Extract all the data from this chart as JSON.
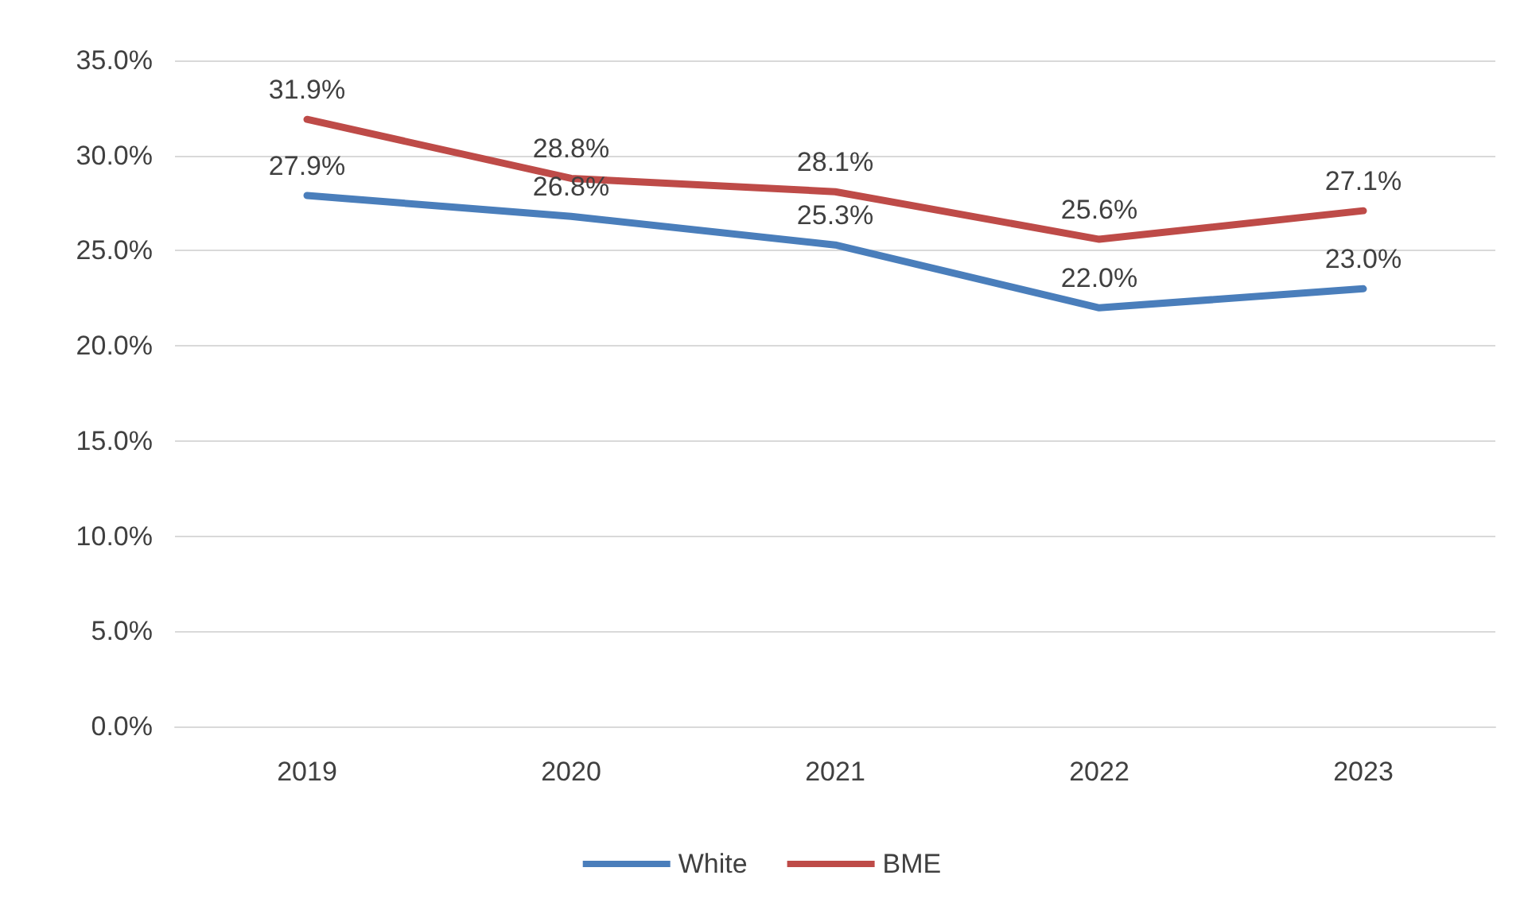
{
  "chart_data": {
    "type": "line",
    "categories": [
      "2019",
      "2020",
      "2021",
      "2022",
      "2023"
    ],
    "series": [
      {
        "name": "White",
        "color": "#4a7ebb",
        "values": [
          27.9,
          26.8,
          25.3,
          22.0,
          23.0
        ],
        "value_labels": [
          "27.9%",
          "26.8%",
          "25.3%",
          "22.0%",
          "23.0%"
        ]
      },
      {
        "name": "BME",
        "color": "#be4b48",
        "values": [
          31.9,
          28.8,
          28.1,
          25.6,
          27.1
        ],
        "value_labels": [
          "31.9%",
          "28.8%",
          "28.1%",
          "25.6%",
          "27.1%"
        ]
      }
    ],
    "ylim": [
      0,
      35
    ],
    "yticks": [
      {
        "value": 0,
        "label": "0.0%"
      },
      {
        "value": 5,
        "label": "5.0%"
      },
      {
        "value": 10,
        "label": "10.0%"
      },
      {
        "value": 15,
        "label": "15.0%"
      },
      {
        "value": 20,
        "label": "20.0%"
      },
      {
        "value": 25,
        "label": "25.0%"
      },
      {
        "value": 30,
        "label": "30.0%"
      },
      {
        "value": 35,
        "label": "35.0%"
      }
    ],
    "grid": "y",
    "legend": "bottom",
    "marker": "none",
    "line_style": "solid"
  }
}
